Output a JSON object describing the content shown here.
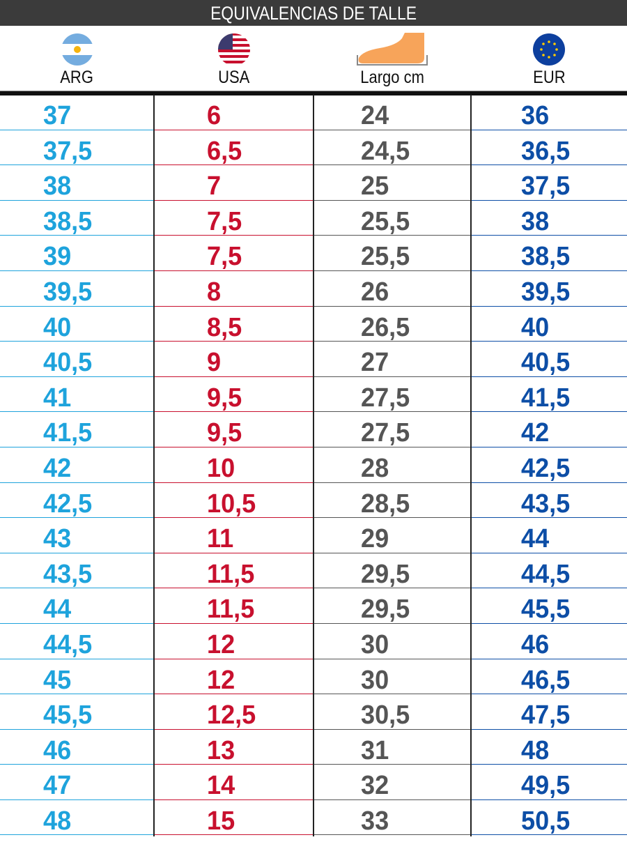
{
  "title": "EQUIVALENCIAS DE TALLE",
  "columns": [
    {
      "label": "ARG",
      "icon": "argentina-flag-icon",
      "color": "#1ea3dc"
    },
    {
      "label": "USA",
      "icon": "usa-flag-icon",
      "color": "#c8102e"
    },
    {
      "label": "Largo cm",
      "icon": "foot-icon",
      "color": "#555555"
    },
    {
      "label": "EUR",
      "icon": "eu-flag-icon",
      "color": "#0d4ea6"
    }
  ],
  "rows": [
    [
      "37",
      "6",
      "24",
      "36"
    ],
    [
      "37,5",
      "6,5",
      "24,5",
      "36,5"
    ],
    [
      "38",
      "7",
      "25",
      "37,5"
    ],
    [
      "38,5",
      "7,5",
      "25,5",
      "38"
    ],
    [
      "39",
      "7,5",
      "25,5",
      "38,5"
    ],
    [
      "39,5",
      "8",
      "26",
      "39,5"
    ],
    [
      "40",
      "8,5",
      "26,5",
      "40"
    ],
    [
      "40,5",
      "9",
      "27",
      "40,5"
    ],
    [
      "41",
      "9,5",
      "27,5",
      "41,5"
    ],
    [
      "41,5",
      "9,5",
      "27,5",
      "42"
    ],
    [
      "42",
      "10",
      "28",
      "42,5"
    ],
    [
      "42,5",
      "10,5",
      "28,5",
      "43,5"
    ],
    [
      "43",
      "11",
      "29",
      "44"
    ],
    [
      "43,5",
      "11,5",
      "29,5",
      "44,5"
    ],
    [
      "44",
      "11,5",
      "29,5",
      "45,5"
    ],
    [
      "44,5",
      "12",
      "30",
      "46"
    ],
    [
      "45",
      "12",
      "30",
      "46,5"
    ],
    [
      "45,5",
      "12,5",
      "30,5",
      "47,5"
    ],
    [
      "46",
      "13",
      "31",
      "48"
    ],
    [
      "47",
      "14",
      "32",
      "49,5"
    ],
    [
      "48",
      "15",
      "33",
      "50,5"
    ]
  ]
}
